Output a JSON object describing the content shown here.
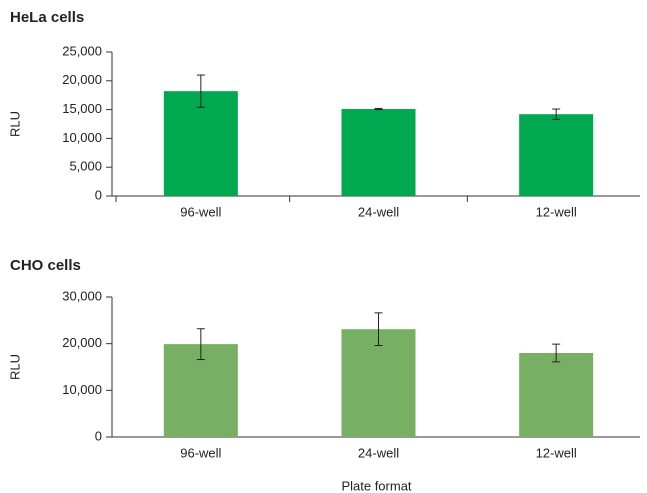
{
  "chart_data": [
    {
      "type": "bar",
      "title": "HeLa cells",
      "y_label": "RLU",
      "categories": [
        "96-well",
        "24-well",
        "12-well"
      ],
      "values": [
        18200,
        15100,
        14200
      ],
      "errors": [
        2800,
        100,
        900
      ],
      "color": "#00a84f",
      "ylim": [
        0,
        25000
      ],
      "yticks": [
        0,
        {
          "value": 5000,
          "label": "5,000"
        },
        {
          "value": 10000,
          "label": "10,000"
        },
        {
          "value": 15000,
          "label": "15,000"
        },
        {
          "value": 20000,
          "label": "20,000"
        },
        {
          "value": 25000,
          "label": "25,000"
        }
      ],
      "category_ticks": true
    },
    {
      "type": "bar",
      "title": "CHO cells",
      "y_label": "RLU",
      "x_label": "Plate format",
      "categories": [
        "96-well",
        "24-well",
        "12-well"
      ],
      "values": [
        19900,
        23100,
        18000
      ],
      "errors": [
        3300,
        3500,
        1900
      ],
      "color": "#77b062",
      "ylim": [
        0,
        30000
      ],
      "yticks": [
        0,
        {
          "value": 10000,
          "label": "10,000"
        },
        {
          "value": 20000,
          "label": "20,000"
        },
        {
          "value": 30000,
          "label": "30,000"
        }
      ],
      "category_ticks": false
    }
  ]
}
